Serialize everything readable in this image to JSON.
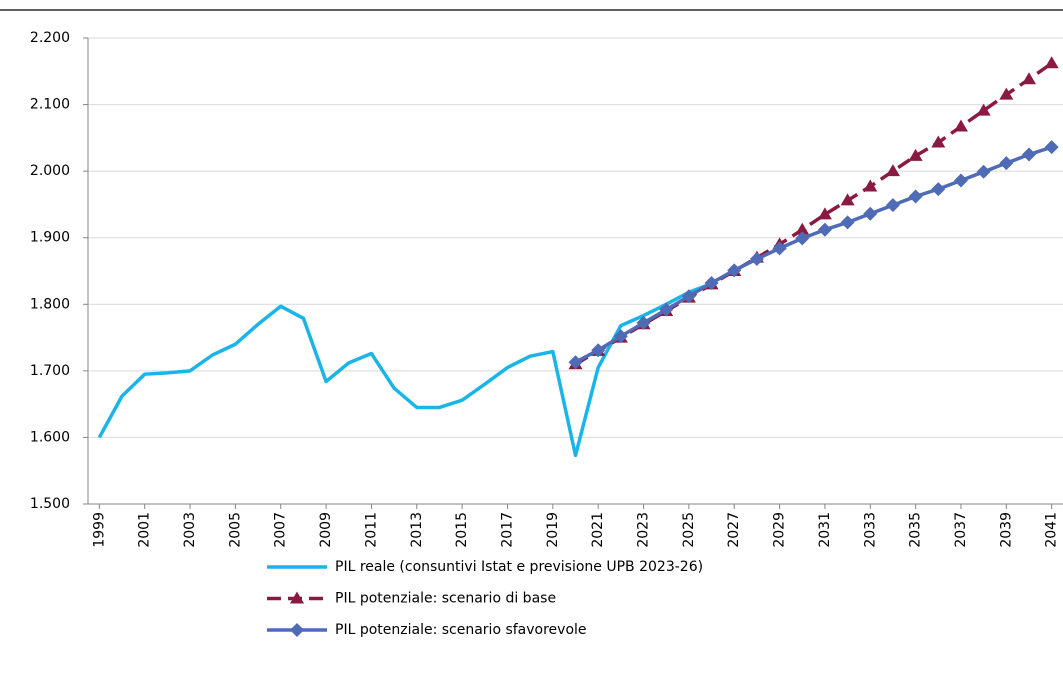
{
  "chart_data": {
    "type": "line",
    "x": [
      1999,
      2000,
      2001,
      2002,
      2003,
      2004,
      2005,
      2006,
      2007,
      2008,
      2009,
      2010,
      2011,
      2012,
      2013,
      2014,
      2015,
      2016,
      2017,
      2018,
      2019,
      2020,
      2021,
      2022,
      2023,
      2024,
      2025,
      2026,
      2027,
      2028,
      2029,
      2030,
      2031,
      2032,
      2033,
      2034,
      2035,
      2036,
      2037,
      2038,
      2039,
      2040,
      2041
    ],
    "xlim": [
      1998.5,
      2041.5
    ],
    "xticks": [
      1999,
      2001,
      2003,
      2005,
      2007,
      2009,
      2011,
      2013,
      2015,
      2017,
      2019,
      2021,
      2023,
      2025,
      2027,
      2029,
      2031,
      2033,
      2035,
      2037,
      2039,
      2041
    ],
    "ylim": [
      1500,
      2200
    ],
    "yticks": [
      {
        "value": 1500,
        "label": "1.500"
      },
      {
        "value": 1600,
        "label": "1.600"
      },
      {
        "value": 1700,
        "label": "1.700"
      },
      {
        "value": 1800,
        "label": "1.800"
      },
      {
        "value": 1900,
        "label": "1.900"
      },
      {
        "value": 2000,
        "label": "2.000"
      },
      {
        "value": 2100,
        "label": "2.100"
      },
      {
        "value": 2200,
        "label": "2.200"
      }
    ],
    "grid": true,
    "series": [
      {
        "name": "PIL reale (consuntivi Istat e previsione UPB 2023-26)",
        "color": "#1ab4e8",
        "dash": false,
        "marker": "none",
        "values": [
          1600,
          1662,
          1695,
          1697,
          1700,
          1724,
          1740,
          1770,
          1797,
          1779,
          1684,
          1712,
          1726,
          1674,
          1645,
          1645,
          1656,
          1680,
          1705,
          1722,
          1729,
          1573,
          1705,
          1768,
          1783,
          1800,
          1818,
          1831,
          null,
          null,
          null,
          null,
          null,
          null,
          null,
          null,
          null,
          null,
          null,
          null,
          null,
          null,
          null
        ]
      },
      {
        "name": "PIL potenziale: scenario di base",
        "color": "#8b1a42",
        "dash": true,
        "marker": "triangle",
        "values": [
          null,
          null,
          null,
          null,
          null,
          null,
          null,
          null,
          null,
          null,
          null,
          null,
          null,
          null,
          null,
          null,
          null,
          null,
          null,
          null,
          null,
          1710,
          1730,
          1750,
          1770,
          1790,
          1810,
          1830,
          1850,
          1870,
          1890,
          1912,
          1935,
          1956,
          1977,
          2000,
          2023,
          2043,
          2067,
          2091,
          2115,
          2138,
          2162
        ]
      },
      {
        "name": "PIL potenziale: scenario sfavorevole",
        "color": "#4f6bb5",
        "dash": false,
        "marker": "diamond",
        "values": [
          null,
          null,
          null,
          null,
          null,
          null,
          null,
          null,
          null,
          null,
          null,
          null,
          null,
          null,
          null,
          null,
          null,
          null,
          null,
          null,
          null,
          1713,
          1731,
          1752,
          1772,
          1792,
          1812,
          1832,
          1851,
          1868,
          1884,
          1899,
          1912,
          1923,
          1936,
          1949,
          1962,
          1973,
          1986,
          1999,
          2012,
          2025,
          2036
        ]
      }
    ]
  }
}
